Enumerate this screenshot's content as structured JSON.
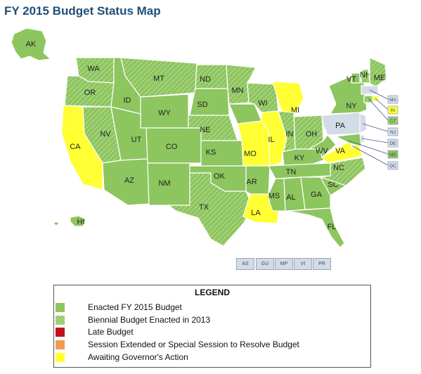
{
  "title": "FY 2015 Budget Status Map",
  "colors": {
    "enacted": "#8dc55f",
    "biennial": "#8dc55f",
    "late": "#c0101a",
    "special": "#f29a4a",
    "awaiting": "#ffff33",
    "na": "#d3dbe6"
  },
  "states": [
    {
      "abbr": "AK",
      "status": "enacted"
    },
    {
      "abbr": "HI",
      "status": "enacted"
    },
    {
      "abbr": "WA",
      "status": "biennial"
    },
    {
      "abbr": "OR",
      "status": "biennial"
    },
    {
      "abbr": "CA",
      "status": "awaiting"
    },
    {
      "abbr": "NV",
      "status": "biennial"
    },
    {
      "abbr": "ID",
      "status": "enacted"
    },
    {
      "abbr": "MT",
      "status": "biennial"
    },
    {
      "abbr": "WY",
      "status": "enacted"
    },
    {
      "abbr": "UT",
      "status": "enacted"
    },
    {
      "abbr": "AZ",
      "status": "enacted"
    },
    {
      "abbr": "CO",
      "status": "enacted"
    },
    {
      "abbr": "NM",
      "status": "enacted"
    },
    {
      "abbr": "ND",
      "status": "biennial"
    },
    {
      "abbr": "SD",
      "status": "enacted"
    },
    {
      "abbr": "NE",
      "status": "biennial"
    },
    {
      "abbr": "KS",
      "status": "enacted"
    },
    {
      "abbr": "OK",
      "status": "enacted"
    },
    {
      "abbr": "TX",
      "status": "biennial"
    },
    {
      "abbr": "MN",
      "status": "biennial"
    },
    {
      "abbr": "IA",
      "status": "enacted"
    },
    {
      "abbr": "MO",
      "status": "awaiting"
    },
    {
      "abbr": "AR",
      "status": "enacted"
    },
    {
      "abbr": "LA",
      "status": "awaiting"
    },
    {
      "abbr": "WI",
      "status": "biennial"
    },
    {
      "abbr": "IL",
      "status": "awaiting"
    },
    {
      "abbr": "MI",
      "status": "awaiting"
    },
    {
      "abbr": "IN",
      "status": "biennial"
    },
    {
      "abbr": "OH",
      "status": "biennial"
    },
    {
      "abbr": "KY",
      "status": "enacted"
    },
    {
      "abbr": "TN",
      "status": "enacted"
    },
    {
      "abbr": "MS",
      "status": "enacted"
    },
    {
      "abbr": "AL",
      "status": "enacted"
    },
    {
      "abbr": "GA",
      "status": "enacted"
    },
    {
      "abbr": "FL",
      "status": "enacted"
    },
    {
      "abbr": "SC",
      "status": "enacted"
    },
    {
      "abbr": "NC",
      "status": "biennial"
    },
    {
      "abbr": "VA",
      "status": "awaiting"
    },
    {
      "abbr": "WV",
      "status": "enacted"
    },
    {
      "abbr": "PA",
      "status": "na"
    },
    {
      "abbr": "NY",
      "status": "enacted"
    },
    {
      "abbr": "VT",
      "status": "enacted"
    },
    {
      "abbr": "NH",
      "status": "biennial"
    },
    {
      "abbr": "ME",
      "status": "biennial"
    },
    {
      "abbr": "MA",
      "status": "na"
    },
    {
      "abbr": "RI",
      "status": "awaiting"
    },
    {
      "abbr": "CT",
      "status": "biennial"
    },
    {
      "abbr": "NJ",
      "status": "na"
    },
    {
      "abbr": "DE",
      "status": "na"
    },
    {
      "abbr": "MD",
      "status": "enacted"
    },
    {
      "abbr": "DC",
      "status": "na"
    }
  ],
  "territories": [
    "AS",
    "GU",
    "MP",
    "VI",
    "PR"
  ],
  "legend": {
    "title": "LEGEND",
    "items": [
      {
        "key": "enacted",
        "label": "Enacted FY 2015 Budget",
        "pattern": false
      },
      {
        "key": "biennial",
        "label": "Biennial Budget Enacted in 2013",
        "pattern": true
      },
      {
        "key": "late",
        "label": "Late Budget",
        "pattern": false
      },
      {
        "key": "special",
        "label": "Session Extended or Special Session to Resolve Budget",
        "pattern": false
      },
      {
        "key": "awaiting",
        "label": "Awaiting Governor's Action",
        "pattern": false
      }
    ]
  }
}
